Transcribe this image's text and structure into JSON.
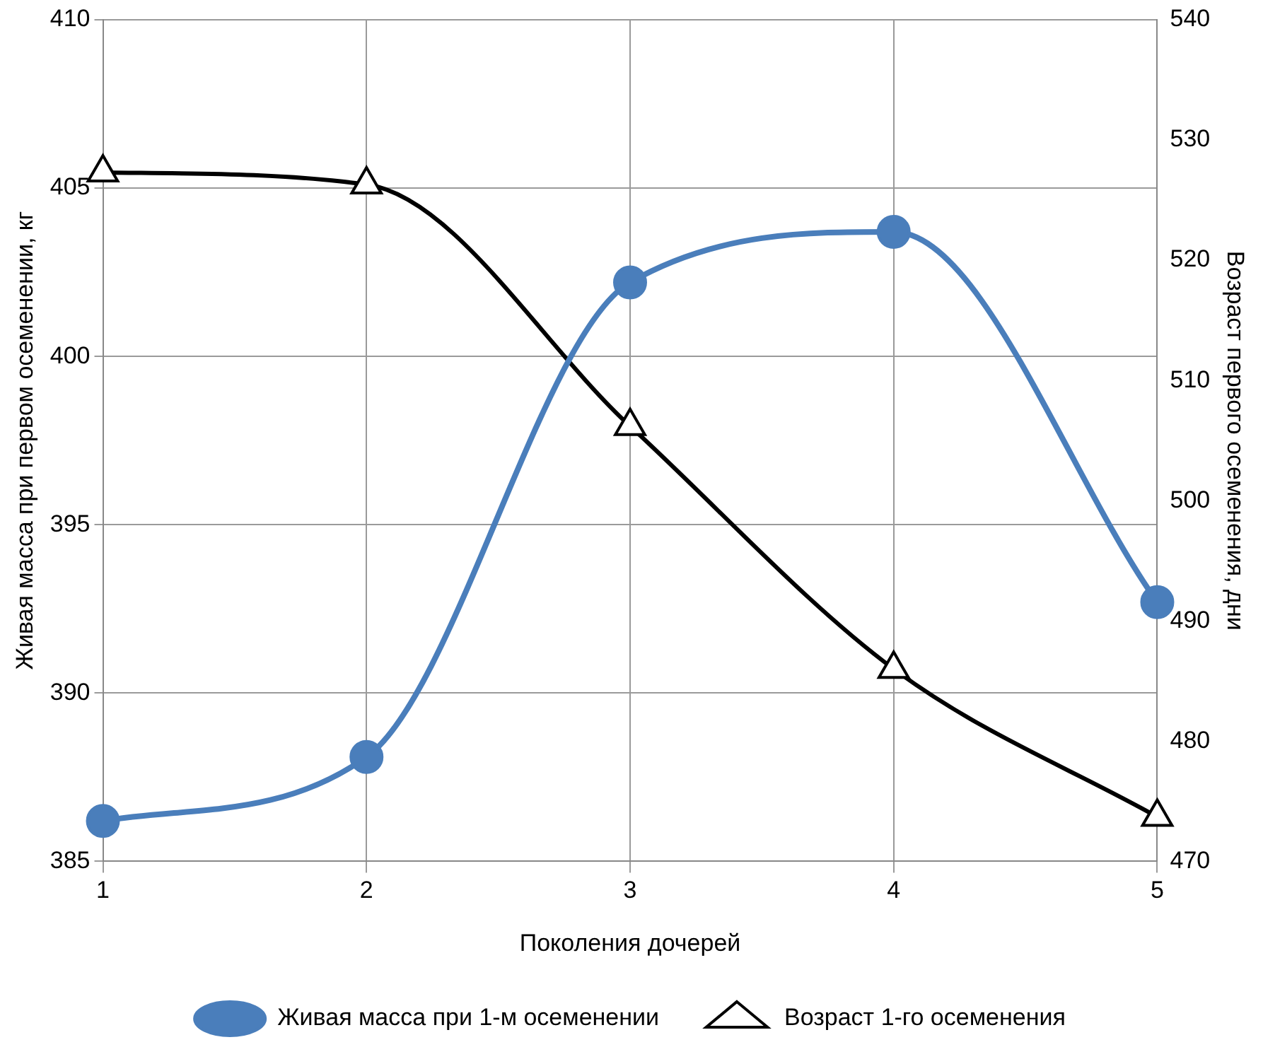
{
  "chart_data": {
    "type": "line",
    "xlabel": "Поколения дочерей",
    "ylabel": "Живая масса при первом осеменении, кг",
    "y2label": "Возраст первого осеменения, дни",
    "categories": [
      "1",
      "2",
      "3",
      "4",
      "5"
    ],
    "series": [
      {
        "name": "Живая масса при 1-м осеменении",
        "color": "#4a7ebb",
        "marker": "circle",
        "values": [
          386.2,
          388.1,
          402.2,
          403.7,
          392.7
        ]
      },
      {
        "name": "Возраст 1-го осеменения",
        "color": "#000000",
        "marker": "triangle",
        "axis": "y2",
        "values": [
          527.3,
          526.3,
          506.2,
          486.0,
          473.7
        ]
      }
    ],
    "ylim": [
      385,
      410
    ],
    "yticks": [
      385,
      390,
      395,
      400,
      405,
      410
    ],
    "y2lim": [
      470,
      540
    ],
    "y2ticks": [
      470,
      480,
      490,
      500,
      510,
      520,
      530,
      540
    ],
    "grid": true,
    "legend": "bottom"
  }
}
